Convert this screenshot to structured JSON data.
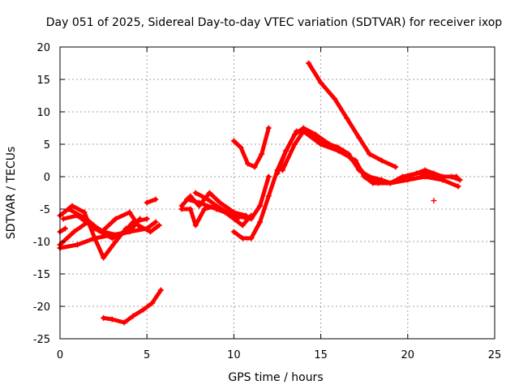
{
  "chart_data": {
    "type": "scatter",
    "title": "Day 051 of 2025, Sidereal Day-to-day VTEC variation (SDTVAR) for receiver ixop",
    "xlabel": "GPS time / hours",
    "ylabel": "SDTVAR / TECUs",
    "xlim": [
      0,
      25
    ],
    "ylim": [
      -25,
      20
    ],
    "xticks": [
      0,
      5,
      10,
      15,
      20,
      25
    ],
    "yticks": [
      -25,
      -20,
      -15,
      -10,
      -5,
      0,
      5,
      10,
      15,
      20
    ],
    "grid": true,
    "marker": "+",
    "color": "#ff0000",
    "series": [
      {
        "name": "arc-a",
        "points": [
          [
            0.0,
            -11.0
          ],
          [
            1.0,
            -10.5
          ],
          [
            2.0,
            -9.5
          ],
          [
            3.0,
            -9.0
          ],
          [
            4.0,
            -8.5
          ],
          [
            5.0,
            -8.0
          ],
          [
            5.5,
            -7.0
          ]
        ]
      },
      {
        "name": "arc-b",
        "points": [
          [
            0.0,
            -10.5
          ],
          [
            0.8,
            -8.5
          ],
          [
            1.6,
            -7.0
          ],
          [
            2.5,
            -8.5
          ],
          [
            3.3,
            -9.0
          ],
          [
            4.0,
            -8.5
          ],
          [
            4.6,
            -6.5
          ]
        ]
      },
      {
        "name": "arc-c",
        "points": [
          [
            0.0,
            -6.0
          ],
          [
            0.7,
            -4.5
          ],
          [
            1.4,
            -5.5
          ],
          [
            2.0,
            -9.5
          ],
          [
            2.5,
            -12.5
          ],
          [
            3.2,
            -10.0
          ],
          [
            3.8,
            -8.0
          ]
        ]
      },
      {
        "name": "arc-d",
        "points": [
          [
            0.2,
            -6.5
          ],
          [
            1.0,
            -6.0
          ],
          [
            2.0,
            -8.0
          ],
          [
            3.0,
            -9.5
          ],
          [
            3.7,
            -8.5
          ],
          [
            4.2,
            -7.0
          ],
          [
            5.0,
            -6.5
          ]
        ]
      },
      {
        "name": "arc-e",
        "points": [
          [
            0.5,
            -5.0
          ],
          [
            1.5,
            -6.5
          ],
          [
            2.4,
            -8.5
          ],
          [
            3.2,
            -6.5
          ],
          [
            4.0,
            -5.5
          ],
          [
            4.5,
            -7.5
          ],
          [
            5.2,
            -8.5
          ],
          [
            5.7,
            -7.5
          ]
        ]
      },
      {
        "name": "arc-f",
        "points": [
          [
            0.0,
            -8.5
          ],
          [
            0.3,
            -8.0
          ]
        ]
      },
      {
        "name": "arc-g",
        "points": [
          [
            5.0,
            -4.0
          ],
          [
            5.5,
            -3.5
          ]
        ]
      },
      {
        "name": "arc-h",
        "points": [
          [
            7.0,
            -4.5
          ],
          [
            7.5,
            -3.0
          ],
          [
            8.0,
            -4.5
          ],
          [
            8.6,
            -2.5
          ],
          [
            9.2,
            -4.0
          ],
          [
            10.0,
            -5.5
          ],
          [
            10.7,
            -6.0
          ]
        ]
      },
      {
        "name": "arc-i",
        "points": [
          [
            7.0,
            -5.0
          ],
          [
            7.5,
            -5.0
          ],
          [
            7.8,
            -7.5
          ],
          [
            8.3,
            -5.0
          ],
          [
            9.0,
            -4.5
          ],
          [
            9.6,
            -5.5
          ],
          [
            10.2,
            -6.5
          ]
        ]
      },
      {
        "name": "arc-j",
        "points": [
          [
            7.3,
            -3.5
          ],
          [
            8.0,
            -4.0
          ],
          [
            9.0,
            -5.0
          ],
          [
            10.0,
            -6.0
          ],
          [
            11.0,
            -6.5
          ],
          [
            11.5,
            -4.5
          ],
          [
            12.0,
            0.0
          ]
        ]
      },
      {
        "name": "arc-k",
        "points": [
          [
            7.8,
            -2.5
          ],
          [
            8.5,
            -3.5
          ],
          [
            9.5,
            -5.5
          ],
          [
            10.5,
            -7.5
          ],
          [
            11.0,
            -6.0
          ]
        ]
      },
      {
        "name": "arc-l",
        "points": [
          [
            10.0,
            -8.5
          ],
          [
            10.5,
            -9.5
          ],
          [
            11.0,
            -9.5
          ],
          [
            11.5,
            -7.0
          ],
          [
            12.0,
            -3.0
          ],
          [
            12.5,
            1.0
          ],
          [
            13.0,
            4.0
          ],
          [
            13.5,
            6.5
          ],
          [
            14.0,
            7.5
          ],
          [
            14.7,
            6.5
          ],
          [
            15.5,
            5.0
          ],
          [
            16.3,
            4.0
          ],
          [
            17.0,
            2.0
          ],
          [
            17.8,
            -0.5
          ],
          [
            18.3,
            -1.0
          ]
        ]
      },
      {
        "name": "arc-m",
        "points": [
          [
            10.0,
            5.5
          ],
          [
            10.4,
            4.5
          ],
          [
            10.8,
            2.0
          ],
          [
            11.2,
            1.5
          ],
          [
            11.6,
            3.5
          ],
          [
            12.0,
            7.5
          ]
        ]
      },
      {
        "name": "arc-n",
        "points": [
          [
            12.5,
            0.5
          ],
          [
            13.0,
            4.0
          ],
          [
            13.6,
            7.0
          ],
          [
            14.2,
            7.0
          ],
          [
            15.0,
            5.5
          ],
          [
            16.0,
            4.5
          ],
          [
            16.6,
            3.5
          ],
          [
            17.2,
            1.0
          ],
          [
            17.8,
            0.0
          ],
          [
            18.5,
            -0.5
          ],
          [
            19.0,
            -1.0
          ],
          [
            19.7,
            0.0
          ],
          [
            20.5,
            0.5
          ],
          [
            21.3,
            0.5
          ],
          [
            22.0,
            0.0
          ],
          [
            22.8,
            0.0
          ]
        ]
      },
      {
        "name": "arc-o",
        "points": [
          [
            12.8,
            1.0
          ],
          [
            13.5,
            5.0
          ],
          [
            14.0,
            7.0
          ],
          [
            15.0,
            5.0
          ],
          [
            16.0,
            4.0
          ],
          [
            17.0,
            2.5
          ],
          [
            17.5,
            0.0
          ],
          [
            18.0,
            -1.0
          ],
          [
            19.0,
            -1.0
          ],
          [
            20.0,
            -0.5
          ],
          [
            21.0,
            0.0
          ],
          [
            22.0,
            -0.5
          ],
          [
            22.9,
            -1.5
          ]
        ]
      },
      {
        "name": "arc-p",
        "points": [
          [
            14.3,
            17.5
          ],
          [
            15.0,
            14.5
          ],
          [
            15.8,
            12.0
          ],
          [
            16.5,
            9.0
          ],
          [
            17.2,
            6.0
          ],
          [
            17.8,
            3.5
          ],
          [
            18.5,
            2.5
          ],
          [
            19.3,
            1.5
          ]
        ]
      },
      {
        "name": "arc-q",
        "points": [
          [
            19.5,
            -0.5
          ],
          [
            20.0,
            0.0
          ],
          [
            20.5,
            0.5
          ],
          [
            21.0,
            1.0
          ],
          [
            21.5,
            0.5
          ],
          [
            22.0,
            0.0
          ],
          [
            22.5,
            0.0
          ],
          [
            23.0,
            -0.5
          ]
        ]
      },
      {
        "name": "arc-r",
        "points": [
          [
            2.5,
            -21.8
          ],
          [
            3.0,
            -22.0
          ],
          [
            3.7,
            -22.5
          ],
          [
            4.2,
            -21.5
          ],
          [
            4.8,
            -20.5
          ],
          [
            5.3,
            -19.5
          ],
          [
            5.8,
            -17.5
          ]
        ]
      },
      {
        "name": "outlier",
        "points": [
          [
            21.5,
            -3.7
          ]
        ]
      }
    ]
  }
}
